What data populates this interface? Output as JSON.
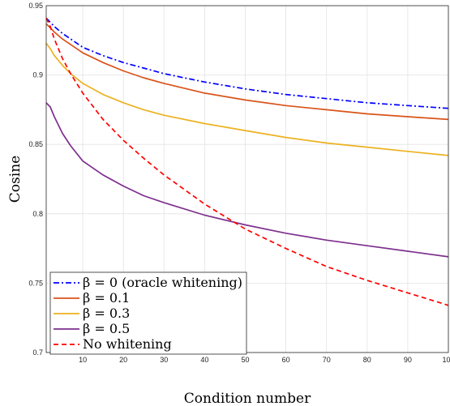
{
  "chart_data": {
    "type": "line",
    "xlabel": "Condition number",
    "ylabel": "Cosine",
    "xlim": [
      1,
      100
    ],
    "ylim": [
      0.7,
      0.95
    ],
    "x_ticks": [
      10,
      20,
      30,
      40,
      50,
      60,
      70,
      80,
      90,
      100
    ],
    "x_tick_labels": [
      "10",
      "20",
      "30",
      "40",
      "50",
      "60",
      "70",
      "80",
      "90",
      "100"
    ],
    "y_ticks": [
      0.7,
      0.75,
      0.8,
      0.85,
      0.9,
      0.95
    ],
    "y_tick_labels": [
      "0.7",
      "0.75",
      "0.8",
      "0.85",
      "0.9",
      "0.95"
    ],
    "grid": true,
    "legend_position": "bottom-left",
    "x": [
      1,
      2,
      3,
      5,
      7,
      10,
      15,
      20,
      25,
      30,
      40,
      50,
      60,
      70,
      80,
      90,
      100
    ],
    "series": [
      {
        "name": "β = 0 (oracle whitening)",
        "color": "#0000ff",
        "dash": "dash-dot",
        "values": [
          0.941,
          0.938,
          0.935,
          0.93,
          0.926,
          0.92,
          0.914,
          0.909,
          0.905,
          0.901,
          0.895,
          0.89,
          0.886,
          0.883,
          0.88,
          0.878,
          0.876
        ]
      },
      {
        "name": "β = 0.1",
        "color": "#d95319",
        "dash": "solid",
        "values": [
          0.937,
          0.934,
          0.931,
          0.926,
          0.922,
          0.916,
          0.909,
          0.903,
          0.898,
          0.894,
          0.887,
          0.882,
          0.878,
          0.875,
          0.872,
          0.87,
          0.868
        ]
      },
      {
        "name": "β = 0.3",
        "color": "#edb120",
        "dash": "solid",
        "values": [
          0.923,
          0.919,
          0.914,
          0.907,
          0.901,
          0.894,
          0.886,
          0.88,
          0.875,
          0.871,
          0.865,
          0.86,
          0.855,
          0.851,
          0.848,
          0.845,
          0.842
        ]
      },
      {
        "name": "β = 0.5",
        "color": "#7e2f8e",
        "dash": "solid",
        "values": [
          0.88,
          0.877,
          0.87,
          0.858,
          0.849,
          0.838,
          0.828,
          0.82,
          0.813,
          0.808,
          0.799,
          0.792,
          0.786,
          0.781,
          0.777,
          0.773,
          0.769
        ]
      },
      {
        "name": "No whitening",
        "color": "#ff0000",
        "dash": "dashed",
        "values": [
          0.941,
          0.935,
          0.926,
          0.912,
          0.901,
          0.887,
          0.868,
          0.853,
          0.84,
          0.828,
          0.807,
          0.789,
          0.775,
          0.762,
          0.752,
          0.743,
          0.734
        ]
      }
    ]
  }
}
